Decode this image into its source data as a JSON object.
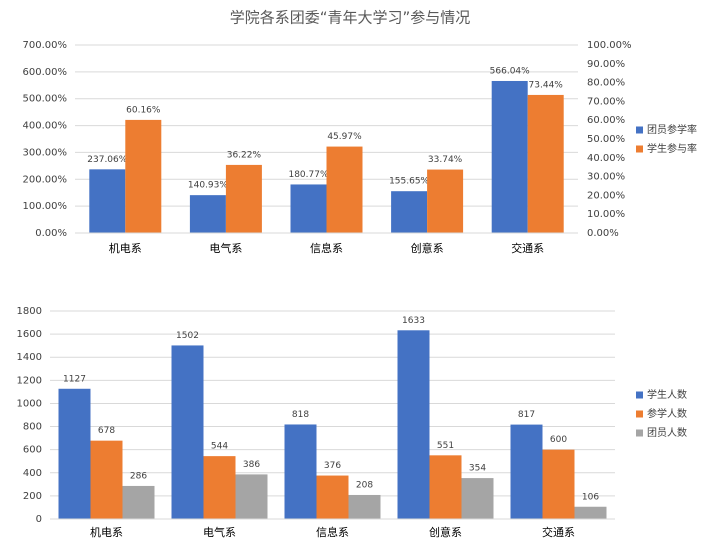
{
  "chart_data": [
    {
      "type": "bar",
      "title": "学院各系团委“青年大学习”参与情况",
      "categories": [
        "机电系",
        "电气系",
        "信息系",
        "创意系",
        "交通系"
      ],
      "series": [
        {
          "name": "团员参学率",
          "color": "#4472c4",
          "values": [
            237.06,
            140.93,
            180.77,
            155.65,
            566.04
          ],
          "value_labels": [
            "237.06%",
            "140.93%",
            "180.77%",
            "155.65%",
            "566.04%"
          ]
        },
        {
          "name": "学生参与率",
          "color": "#ed7d31",
          "axis": "y2",
          "values": [
            60.16,
            36.22,
            45.97,
            33.74,
            73.44
          ],
          "value_labels": [
            "60.16%",
            "36.22%",
            "45.97%",
            "33.74%",
            "73.44%"
          ]
        }
      ],
      "ylim": [
        0,
        700
      ],
      "yticks": [
        {
          "value": 0,
          "label": "0.00%"
        },
        {
          "value": 100,
          "label": "100.00%"
        },
        {
          "value": 200,
          "label": "200.00%"
        },
        {
          "value": 300,
          "label": "300.00%"
        },
        {
          "value": 400,
          "label": "400.00%"
        },
        {
          "value": 500,
          "label": "500.00%"
        },
        {
          "value": 600,
          "label": "600.00%"
        },
        {
          "value": 700,
          "label": "700.00%"
        }
      ],
      "y2lim": [
        0,
        100
      ],
      "y2ticks": [
        {
          "value": 0,
          "label": "0.00%"
        },
        {
          "value": 10,
          "label": "10.00%"
        },
        {
          "value": 20,
          "label": "20.00%"
        },
        {
          "value": 30,
          "label": "30.00%"
        },
        {
          "value": 40,
          "label": "40.00%"
        },
        {
          "value": 50,
          "label": "50.00%"
        },
        {
          "value": 60,
          "label": "60.00%"
        },
        {
          "value": 70,
          "label": "70.00%"
        },
        {
          "value": 80,
          "label": "80.00%"
        },
        {
          "value": 90,
          "label": "90.00%"
        },
        {
          "value": 100,
          "label": "100.00%"
        }
      ],
      "grid": true,
      "legend": "right"
    },
    {
      "type": "bar",
      "categories": [
        "机电系",
        "电气系",
        "信息系",
        "创意系",
        "交通系"
      ],
      "series": [
        {
          "name": "学生人数",
          "color": "#4472c4",
          "values": [
            1127,
            1502,
            818,
            1633,
            817
          ]
        },
        {
          "name": "参学人数",
          "color": "#ed7d31",
          "values": [
            678,
            544,
            376,
            551,
            600
          ]
        },
        {
          "name": "团员人数",
          "color": "#a5a5a5",
          "values": [
            286,
            386,
            208,
            354,
            106
          ]
        }
      ],
      "ylim": [
        0,
        1800
      ],
      "yticks": [
        0,
        200,
        400,
        600,
        800,
        1000,
        1200,
        1400,
        1600,
        1800
      ],
      "grid": true,
      "legend": "right"
    }
  ]
}
